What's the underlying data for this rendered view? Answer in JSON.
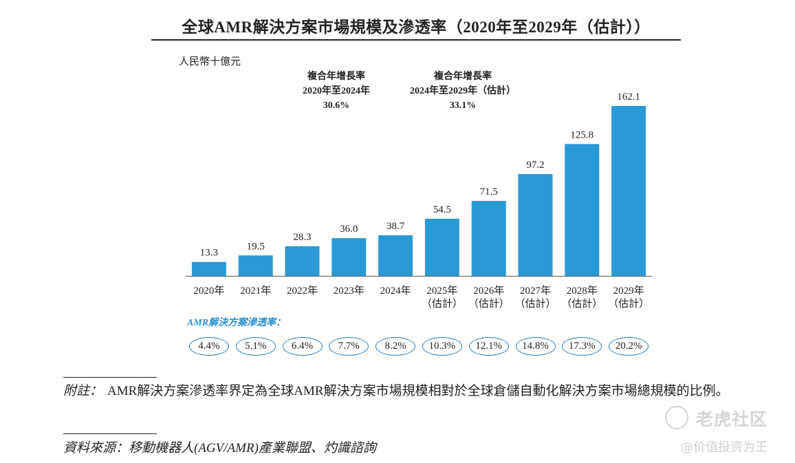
{
  "title": "全球AMR解決方案市場規模及滲透率（2020年至2029年（估計））",
  "unit_label": "人民幣十億元",
  "cagr": [
    {
      "line1": "複合年增長率",
      "line2": "2020年至2024年",
      "line3": "30.6%"
    },
    {
      "line1": "複合年增長率",
      "line2": "2024年至2029年（估計）",
      "line3": "33.1%"
    }
  ],
  "colors": {
    "bar": "#2a9ad6",
    "pill_border": "#2a7bb8",
    "penetration_title": "#2b8fd0"
  },
  "chart_data": {
    "type": "bar",
    "categories": [
      "2020年",
      "2021年",
      "2022年",
      "2023年",
      "2024年",
      "2025年",
      "2026年",
      "2027年",
      "2028年",
      "2029年"
    ],
    "category_sublabels": [
      "",
      "",
      "",
      "",
      "",
      "（估計）",
      "（估計）",
      "（估計）",
      "（估計）",
      "（估計）"
    ],
    "values": [
      13.3,
      19.5,
      28.3,
      36.0,
      38.7,
      54.5,
      71.5,
      97.2,
      125.8,
      162.1
    ],
    "value_labels": [
      "13.3",
      "19.5",
      "28.3",
      "36.0",
      "38.7",
      "54.5",
      "71.5",
      "97.2",
      "125.8",
      "162.1"
    ],
    "title": "全球AMR解決方案市場規模及滲透率（2020年至2029年（估計））",
    "ylabel": "人民幣十億元",
    "ylim": [
      0,
      162.1
    ],
    "grid": false
  },
  "penetration": {
    "title": "AMR解決方案滲透率：",
    "values": [
      "4.4%",
      "5.1%",
      "6.4%",
      "7.7%",
      "8.2%",
      "10.3%",
      "12.1%",
      "14.8%",
      "17.3%",
      "20.2%"
    ]
  },
  "footnote": {
    "label": "附註：",
    "text": "AMR解決方案滲透率界定為全球AMR解決方案市場規模相對於全球倉儲自動化解決方案市場總規模的比例。"
  },
  "source": "資料來源：移動機器人(AGV/AMR)產業聯盟、灼識諮詢",
  "watermark": {
    "brand": "老虎社区",
    "tag": "@价值投资为王"
  }
}
